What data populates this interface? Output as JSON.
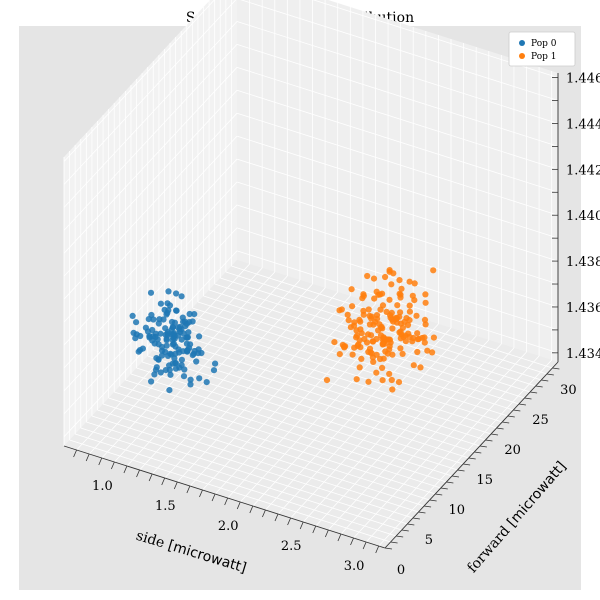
{
  "chart_data": {
    "type": "scatter",
    "title": "Scatterer Sampling Distribution",
    "xlabel_main": "side ",
    "xlabel_unit": "[microwatt]",
    "ylabel_main": "forward ",
    "ylabel_unit": "[microwatt]",
    "zlabel": "",
    "xticks": [
      "1.0",
      "1.5",
      "2.0",
      "2.5",
      "3.0"
    ],
    "yticks": [
      "0",
      "5",
      "10",
      "15",
      "20",
      "25",
      "30"
    ],
    "zticks": [
      "1.434",
      "1.436",
      "1.438",
      "1.440",
      "1.442",
      "1.444",
      "1.446"
    ],
    "legend_placement": "top-right",
    "grid": true,
    "series": [
      {
        "name": "Pop 0",
        "color": "#1f77b4",
        "x_range": [
          0.6,
          1.6
        ],
        "y_range": [
          3,
          13
        ],
        "z_range": [
          1.434,
          1.44
        ],
        "count": 140
      },
      {
        "name": "Pop 1",
        "color": "#ff7f0e",
        "x_range": [
          1.8,
          3.1
        ],
        "y_range": [
          5,
          25
        ],
        "z_range": [
          1.435,
          1.441
        ],
        "count": 170
      }
    ]
  }
}
